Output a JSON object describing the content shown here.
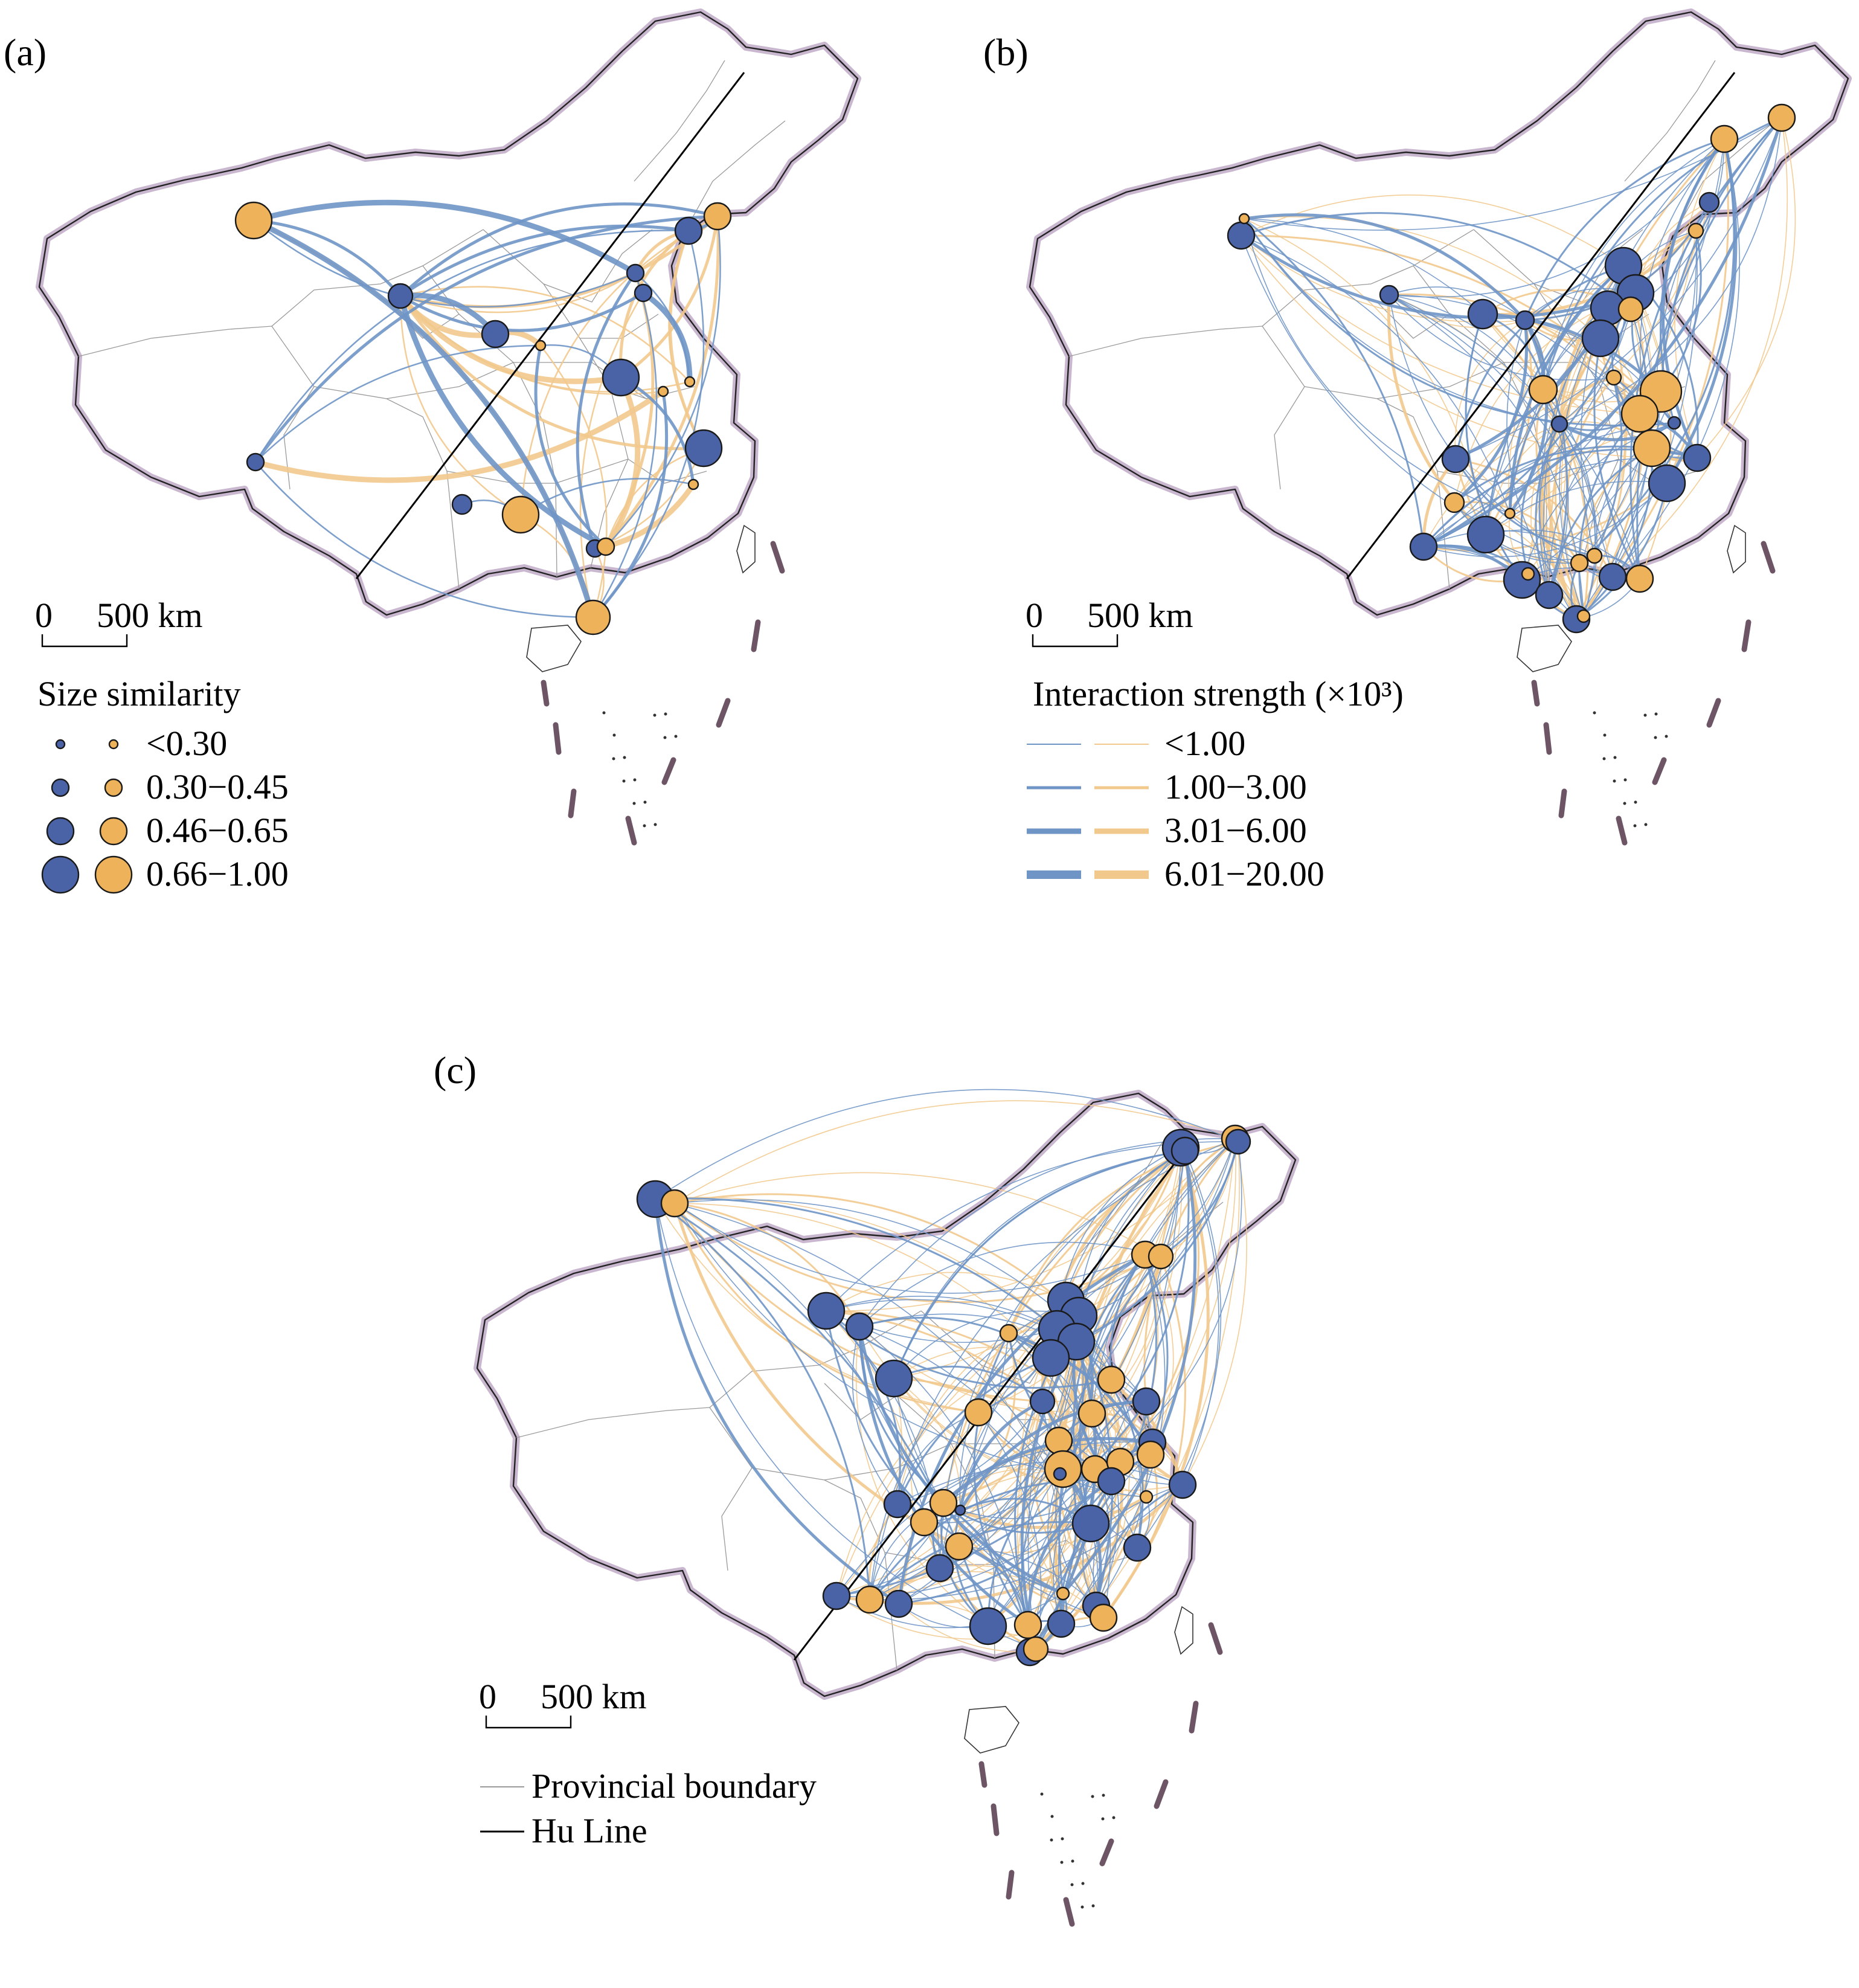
{
  "panels": {
    "a": {
      "label": "(a)"
    },
    "b": {
      "label": "(b)"
    },
    "c": {
      "label": "(c)"
    }
  },
  "scale_bar": {
    "zero": "0",
    "dist": "500 km"
  },
  "legend_a": {
    "title": "Size similarity",
    "classes": [
      "<0.30",
      "0.30−0.45",
      "0.46−0.65",
      "0.66−1.00"
    ]
  },
  "legend_b": {
    "title": "Interaction strength (×10³)",
    "classes": [
      "<1.00",
      "1.00−3.00",
      "3.01−6.00",
      "6.01−20.00"
    ]
  },
  "legend_c": {
    "provincial": "Provincial boundary",
    "hu_line": "Hu Line"
  },
  "colors": {
    "blue_node": "#4a62a6",
    "orange_node": "#eeb25a",
    "blue_flow": "#6f95c6",
    "orange_flow": "#f2c98d",
    "border_halo": "#c9b6cf",
    "province_line": "#9a9a9a",
    "hu_line": "#000000"
  }
}
